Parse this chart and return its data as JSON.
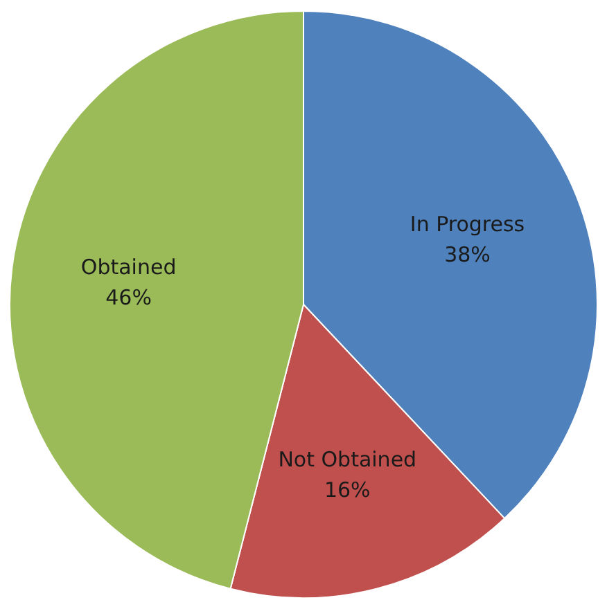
{
  "chart_data": {
    "type": "pie",
    "categories": [
      "In Progress",
      "Not Obtained",
      "Obtained"
    ],
    "values": [
      38,
      16,
      46
    ],
    "colors": [
      "#4f81bd",
      "#c0504d",
      "#9bbb59"
    ],
    "value_labels": [
      "38%",
      "16%",
      "46%"
    ]
  }
}
